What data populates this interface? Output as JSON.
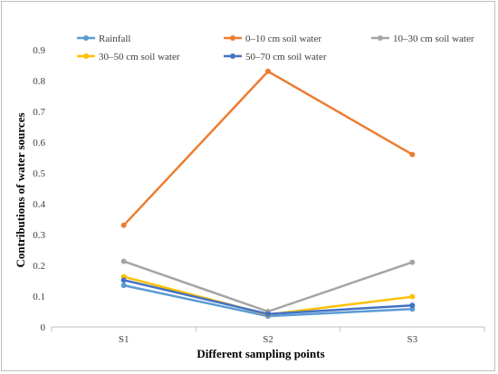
{
  "chart_data": {
    "type": "line",
    "categories": [
      "S1",
      "S2",
      "S3"
    ],
    "xlabel": "Different sampling points",
    "ylabel": "Contributions of water sources",
    "ylim": [
      0,
      0.9
    ],
    "yticks": [
      "0",
      "0.1",
      "0.2",
      "0.3",
      "0.4",
      "0.5",
      "0.6",
      "0.7",
      "0.8",
      "0.9"
    ],
    "grid": false,
    "legend_position": "top",
    "series": [
      {
        "name": "Rainfall",
        "color": "#5b9bd5",
        "values": [
          0.135,
          0.035,
          0.058
        ]
      },
      {
        "name": "0–10 cm soil water",
        "color": "#ed7d31",
        "values": [
          0.33,
          0.83,
          0.56
        ]
      },
      {
        "name": "10–30 cm soil water",
        "color": "#a5a5a5",
        "values": [
          0.213,
          0.05,
          0.21
        ]
      },
      {
        "name": "30–50 cm soil water",
        "color": "#ffc000",
        "values": [
          0.163,
          0.04,
          0.098
        ]
      },
      {
        "name": "50–70 cm soil water",
        "color": "#4472c4",
        "values": [
          0.152,
          0.042,
          0.07
        ]
      }
    ]
  }
}
